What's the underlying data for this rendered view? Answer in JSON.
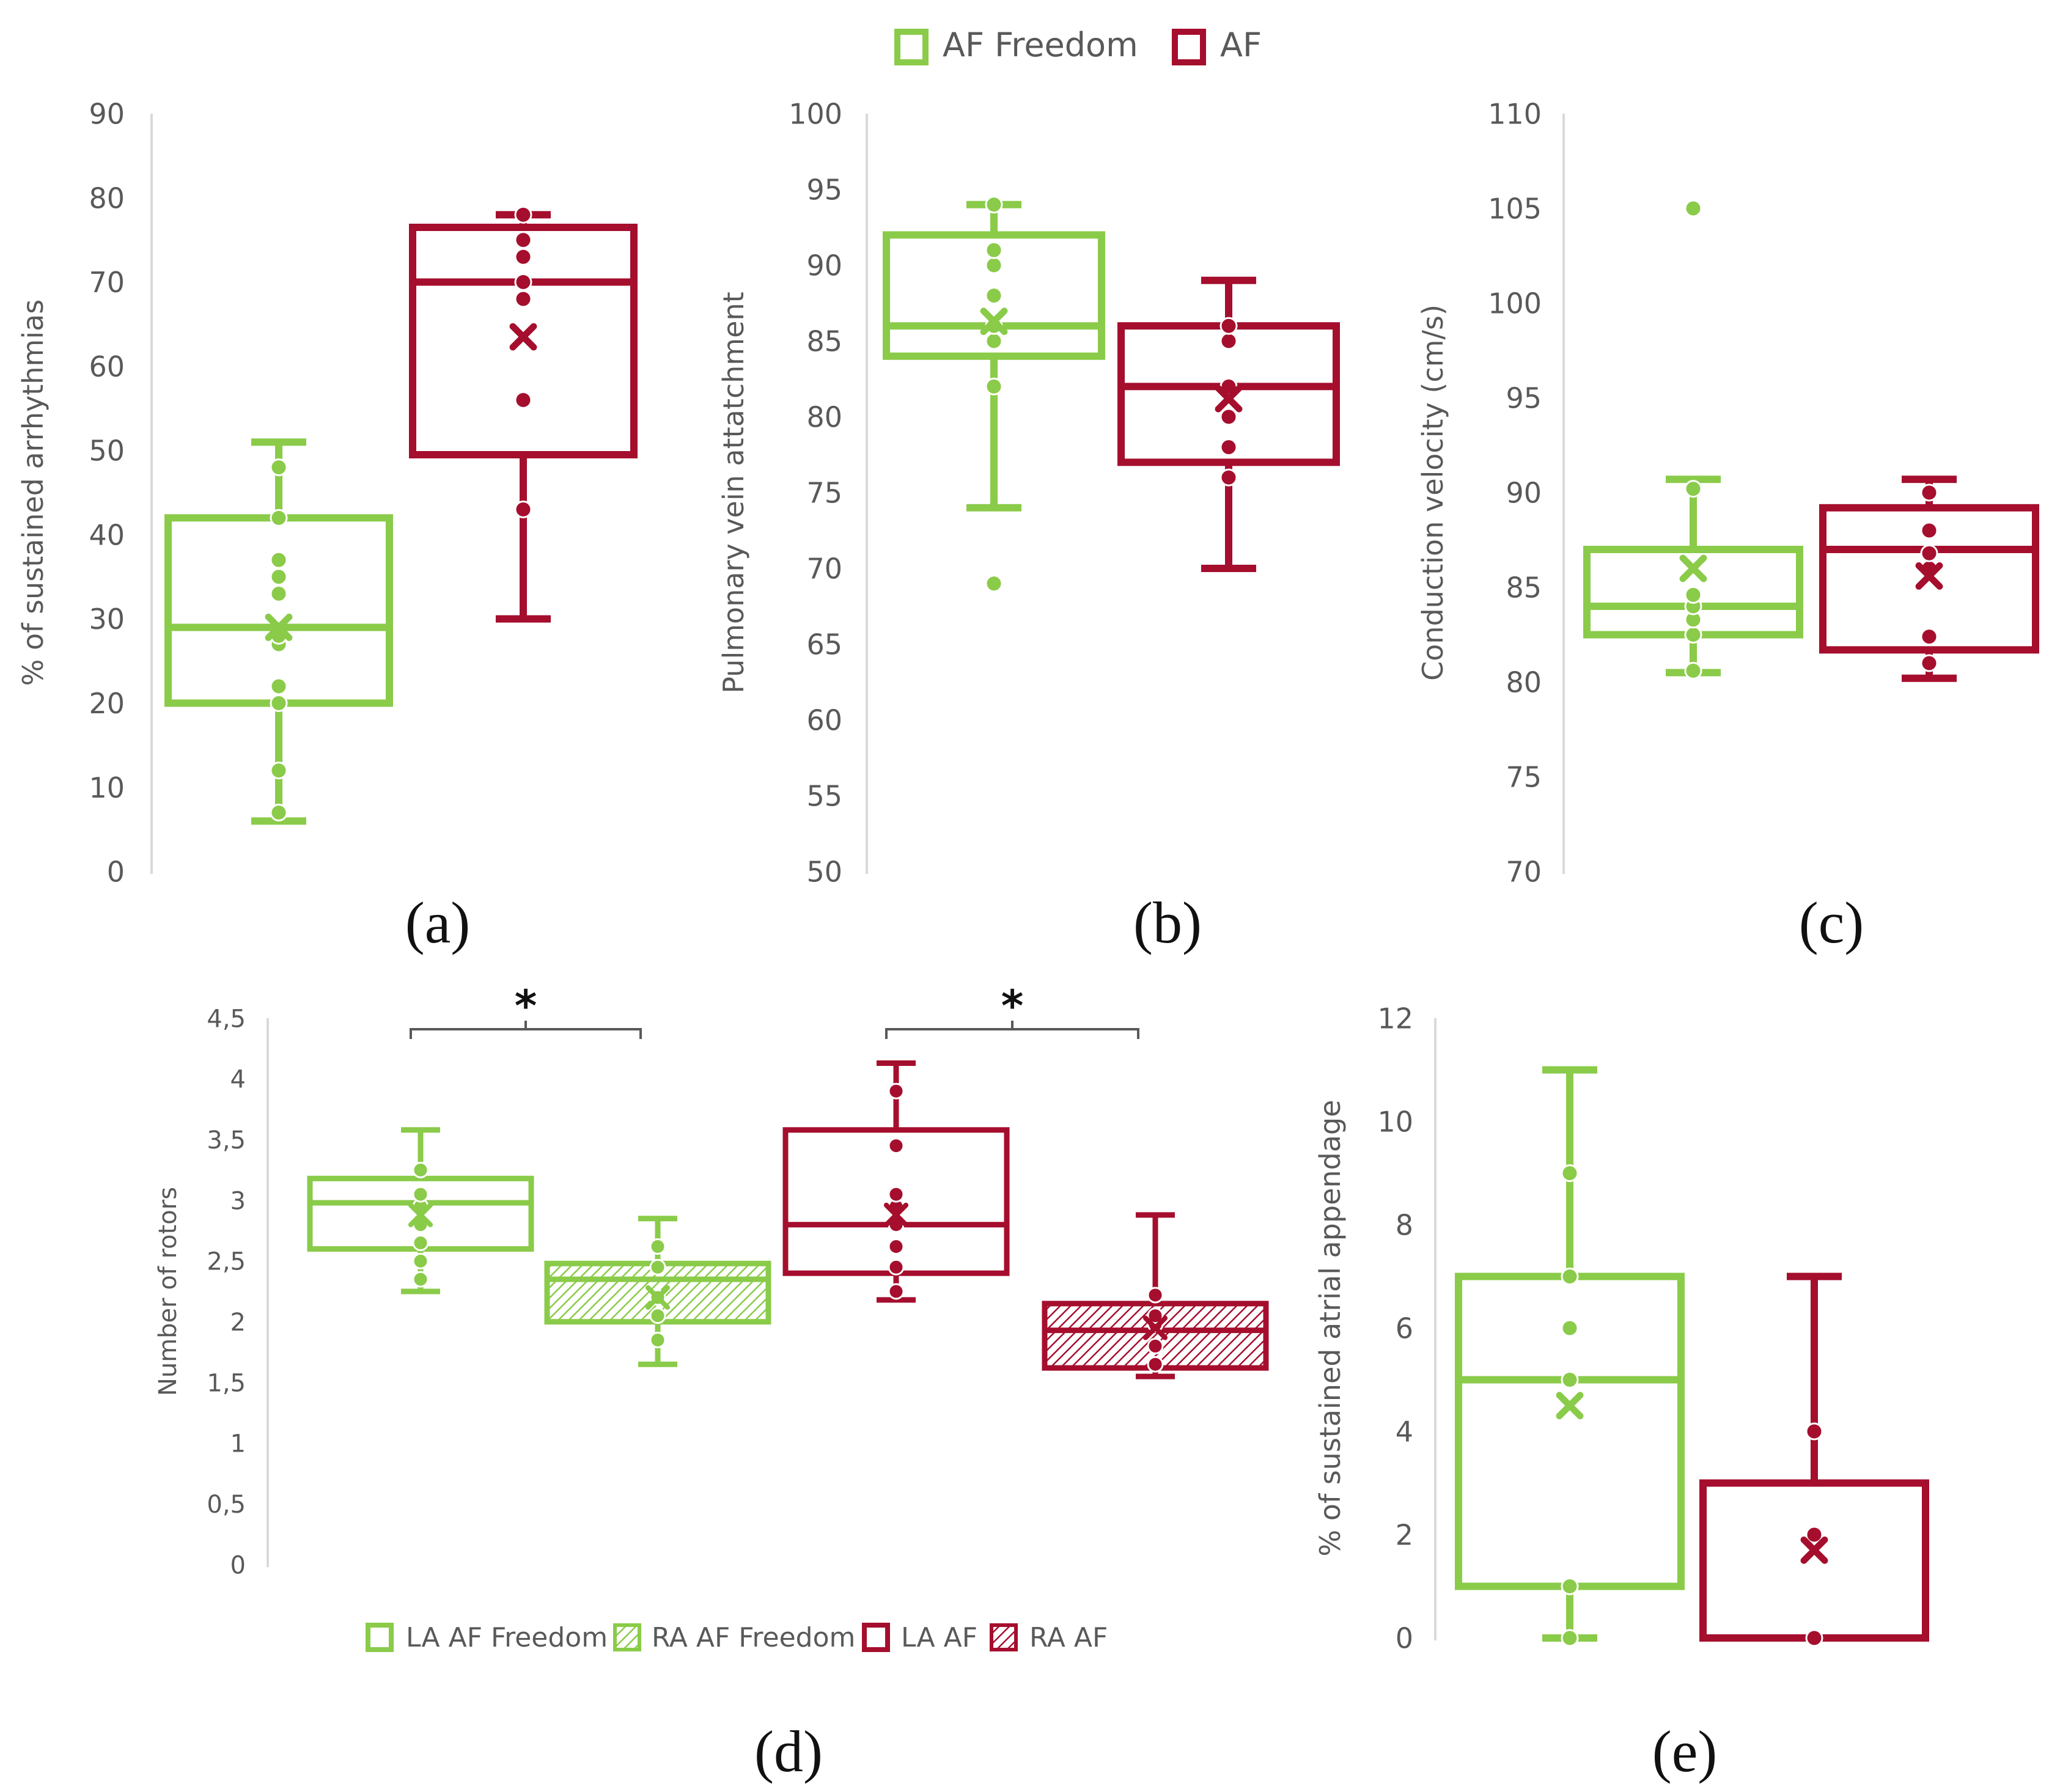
{
  "colors": {
    "green": "#8ACB49",
    "red": "#A50E2D",
    "axis": "#D9D9D9",
    "text": "#595959",
    "black": "#111111"
  },
  "top_legend": [
    {
      "label": "AF Freedom",
      "color": "#8ACB49",
      "pattern": "outline"
    },
    {
      "label": "AF",
      "color": "#A50E2D",
      "pattern": "outline"
    }
  ],
  "chart_data": [
    {
      "id": "a",
      "type": "box",
      "panel_label": "(a)",
      "ylabel": "% of sustained arrhythmias",
      "xlabel": "",
      "ylim": [
        0,
        90
      ],
      "ytick_values": [
        0,
        10,
        20,
        30,
        40,
        50,
        60,
        70,
        80,
        90
      ],
      "ytick_labels": [
        "0",
        "10",
        "20",
        "30",
        "40",
        "50",
        "60",
        "70",
        "80",
        "90"
      ],
      "series": [
        {
          "name": "AF Freedom",
          "color": "#8ACB49",
          "hatch": false,
          "min": 6,
          "q1": 20,
          "median": 29,
          "q3": 42,
          "max": 51,
          "mean": 29,
          "points": [
            7,
            12,
            20,
            22,
            27,
            28,
            33,
            35,
            37,
            42,
            48
          ]
        },
        {
          "name": "AF",
          "color": "#A50E2D",
          "hatch": false,
          "min": 30,
          "q1": 49.5,
          "median": 70,
          "q3": 76.5,
          "max": 78,
          "mean": 63.5,
          "points": [
            43,
            56,
            68,
            70,
            73,
            75,
            78
          ]
        }
      ]
    },
    {
      "id": "b",
      "type": "box",
      "panel_label": "(b)",
      "ylabel": "Pulmonary vein attatchment",
      "xlabel": "",
      "ylim": [
        50,
        100
      ],
      "ytick_values": [
        50,
        55,
        60,
        65,
        70,
        75,
        80,
        85,
        90,
        95,
        100
      ],
      "ytick_labels": [
        "50",
        "55",
        "60",
        "65",
        "70",
        "75",
        "80",
        "85",
        "90",
        "95",
        "100"
      ],
      "series": [
        {
          "name": "AF Freedom",
          "color": "#8ACB49",
          "hatch": false,
          "min": 74,
          "q1": 84,
          "median": 86,
          "q3": 92,
          "max": 94,
          "mean": 86.3,
          "points": [
            69,
            82,
            85,
            86,
            88,
            90,
            91,
            94
          ]
        },
        {
          "name": "AF",
          "color": "#A50E2D",
          "hatch": false,
          "min": 70,
          "q1": 77,
          "median": 82,
          "q3": 86,
          "max": 89,
          "mean": 81.2,
          "points": [
            76,
            78,
            80,
            82,
            85,
            86
          ]
        }
      ]
    },
    {
      "id": "c",
      "type": "box",
      "panel_label": "(c)",
      "ylabel": "Conduction velocity (cm/s)",
      "xlabel": "",
      "ylim": [
        70,
        110
      ],
      "ytick_values": [
        70,
        75,
        80,
        85,
        90,
        95,
        100,
        105,
        110
      ],
      "ytick_labels": [
        "70",
        "75",
        "80",
        "85",
        "90",
        "95",
        "100",
        "105",
        "110"
      ],
      "series": [
        {
          "name": "AF Freedom",
          "color": "#8ACB49",
          "hatch": false,
          "min": 80.5,
          "q1": 82.5,
          "median": 84,
          "q3": 87,
          "max": 90.7,
          "mean": 86,
          "points": [
            80.6,
            82.5,
            83.3,
            84,
            84.6,
            90.2,
            105
          ]
        },
        {
          "name": "AF",
          "color": "#A50E2D",
          "hatch": false,
          "min": 80.2,
          "q1": 81.7,
          "median": 87,
          "q3": 89.2,
          "max": 90.7,
          "mean": 85.6,
          "points": [
            81,
            82.4,
            86,
            86.8,
            88,
            90
          ]
        }
      ]
    },
    {
      "id": "d",
      "type": "box",
      "panel_label": "(d)",
      "ylabel": "Number of rotors",
      "xlabel": "",
      "ylim": [
        0,
        4.5
      ],
      "ytick_values": [
        0,
        0.5,
        1,
        1.5,
        2,
        2.5,
        3,
        3.5,
        4,
        4.5
      ],
      "ytick_labels": [
        "0",
        "0,5",
        "1",
        "1,5",
        "2",
        "2,5",
        "3",
        "3,5",
        "4",
        "4,5"
      ],
      "significance": [
        {
          "from": 0,
          "to": 1,
          "label": "*"
        },
        {
          "from": 2,
          "to": 3,
          "label": "*"
        }
      ],
      "legend": [
        {
          "label": "LA AF Freedom",
          "color": "#8ACB49",
          "pattern": "outline"
        },
        {
          "label": "RA AF Freedom",
          "color": "#8ACB49",
          "pattern": "hatch"
        },
        {
          "label": "LA AF",
          "color": "#A50E2D",
          "pattern": "outline"
        },
        {
          "label": "RA AF",
          "color": "#A50E2D",
          "pattern": "hatch"
        }
      ],
      "series": [
        {
          "name": "LA AF Freedom",
          "color": "#8ACB49",
          "hatch": false,
          "min": 2.25,
          "q1": 2.6,
          "median": 2.98,
          "q3": 3.18,
          "max": 3.58,
          "mean": 2.88,
          "points": [
            2.35,
            2.5,
            2.65,
            2.8,
            2.95,
            3.05,
            3.25
          ]
        },
        {
          "name": "RA AF Freedom",
          "color": "#8ACB49",
          "hatch": true,
          "min": 1.65,
          "q1": 2.0,
          "median": 2.35,
          "q3": 2.48,
          "max": 2.85,
          "mean": 2.2,
          "points": [
            1.85,
            2.05,
            2.2,
            2.45,
            2.62
          ]
        },
        {
          "name": "LA AF",
          "color": "#A50E2D",
          "hatch": false,
          "min": 2.18,
          "q1": 2.4,
          "median": 2.8,
          "q3": 3.58,
          "max": 4.13,
          "mean": 2.88,
          "points": [
            2.25,
            2.45,
            2.62,
            2.8,
            2.95,
            3.05,
            3.45,
            3.9
          ]
        },
        {
          "name": "RA AF",
          "color": "#A50E2D",
          "hatch": true,
          "min": 1.55,
          "q1": 1.62,
          "median": 1.93,
          "q3": 2.15,
          "max": 2.88,
          "mean": 1.95,
          "points": [
            1.65,
            1.8,
            1.98,
            2.05,
            2.22
          ]
        }
      ]
    },
    {
      "id": "e",
      "type": "box",
      "panel_label": "(e)",
      "ylabel": "% of sustained atrial appendage",
      "xlabel": "",
      "ylim": [
        0,
        12
      ],
      "ytick_values": [
        0,
        2,
        4,
        6,
        8,
        10,
        12
      ],
      "ytick_labels": [
        "0",
        "2",
        "4",
        "6",
        "8",
        "10",
        "12"
      ],
      "series": [
        {
          "name": "AF Freedom",
          "color": "#8ACB49",
          "hatch": false,
          "min": 0,
          "q1": 1,
          "median": 5,
          "q3": 7,
          "max": 11,
          "mean": 4.5,
          "points": [
            0,
            1,
            5,
            6,
            7,
            9
          ]
        },
        {
          "name": "AF",
          "color": "#A50E2D",
          "hatch": false,
          "min": 0,
          "q1": 0,
          "median": 3,
          "q3": 3,
          "max": 7,
          "mean": 1.7,
          "points": [
            0,
            2,
            4
          ]
        }
      ]
    }
  ]
}
